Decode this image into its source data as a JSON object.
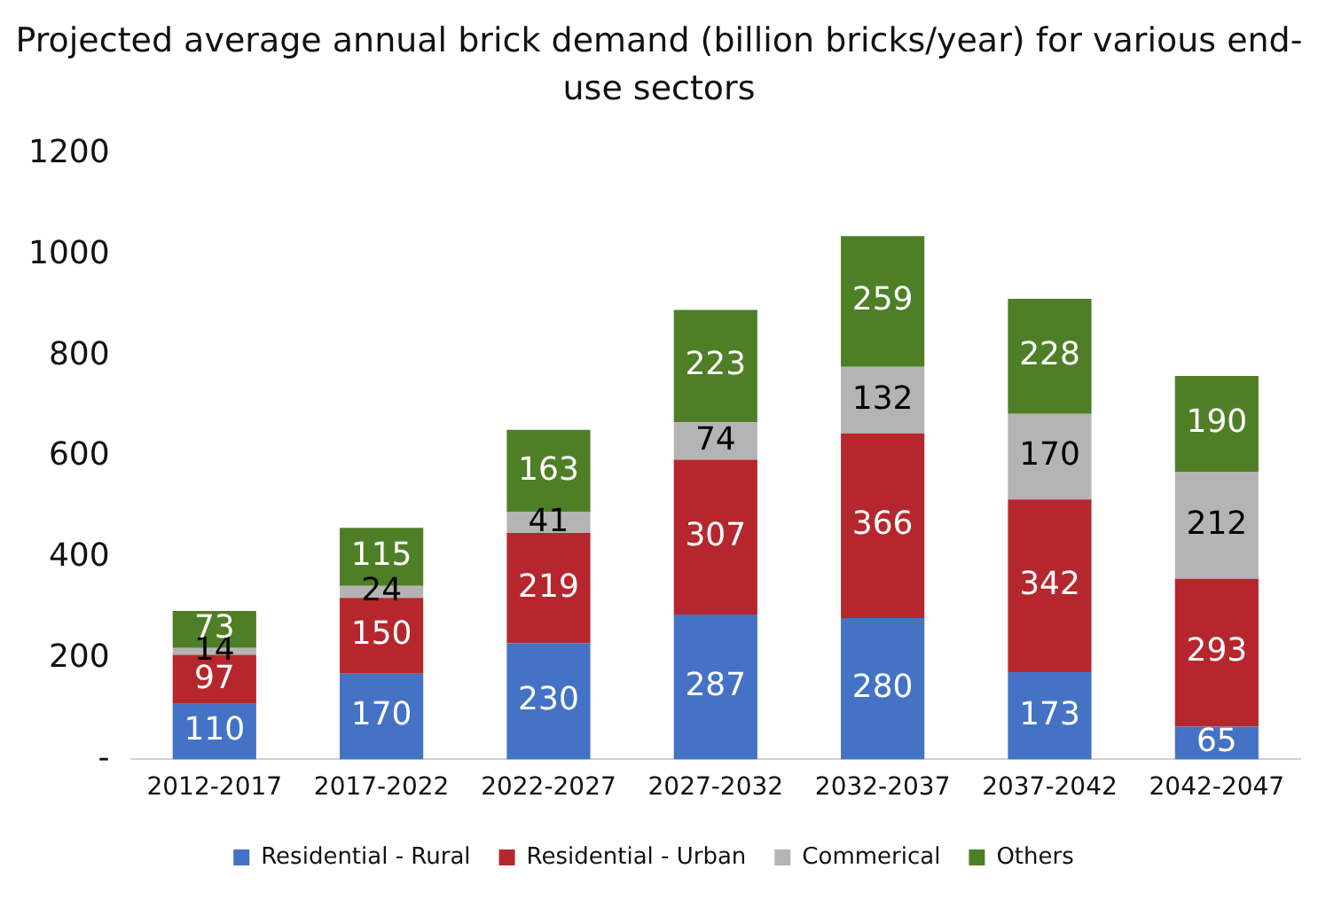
{
  "chart_data": {
    "type": "bar",
    "stacked": true,
    "title": "Projected average annual brick demand (billion bricks/year) for various end-use sectors",
    "categories": [
      "2012-2017",
      "2017-2022",
      "2022-2027",
      "2027-2032",
      "2032-2037",
      "2037-2042",
      "2042-2047"
    ],
    "series": [
      {
        "name": "Residential - Rural",
        "color": "#4472c4",
        "values": [
          110,
          170,
          230,
          287,
          280,
          173,
          65
        ]
      },
      {
        "name": "Residential - Urban",
        "color": "#b5272d",
        "values": [
          97,
          150,
          219,
          307,
          366,
          342,
          293
        ]
      },
      {
        "name": "Commerical",
        "color": "#b4b4b4",
        "values": [
          14,
          24,
          41,
          74,
          132,
          170,
          212
        ]
      },
      {
        "name": "Others",
        "color": "#4e7f26",
        "values": [
          73,
          115,
          163,
          223,
          259,
          228,
          190
        ]
      }
    ],
    "ylim": [
      0,
      1200
    ],
    "yticks": [
      {
        "value": 0,
        "label": "-"
      },
      200,
      400,
      600,
      800,
      1000,
      1200
    ],
    "grid": false,
    "legend": "bottom",
    "data_labels": true
  }
}
